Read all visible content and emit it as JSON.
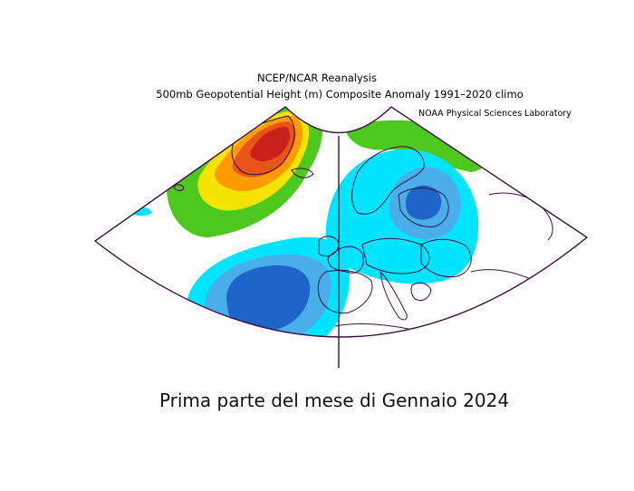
{
  "titles": {
    "line1": "NCEP/NCAR Reanalysis",
    "line2": "500mb Geopotential Height (m) Composite Anomaly 1991–2020 climo",
    "credit": "NOAA Physical Sciences Laboratory"
  },
  "caption": "Prima parte del mese di Gennaio 2024",
  "palette": {
    "strong_negative": "#1f64c8",
    "negative": "#4aaeea",
    "weak_negative": "#00e5ff",
    "weak_positive": "#4cc81e",
    "positive_green": "#8fd62a",
    "positive_yellow": "#f5e300",
    "positive_orange": "#ff9a00",
    "positive_red": "#e8541a",
    "positive_darkred": "#c8201a",
    "outline": "#3a1040"
  }
}
